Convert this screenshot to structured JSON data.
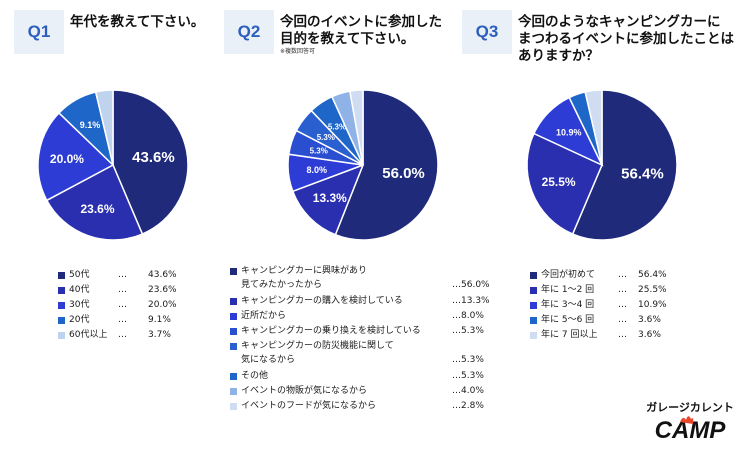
{
  "questions": [
    {
      "badge": "Q1",
      "title_lines": [
        "年代を教えて下さい。"
      ],
      "note": "",
      "chart_data": {
        "type": "pie",
        "title": "年代を教えて下さい。",
        "labels": [
          "50代",
          "40代",
          "30代",
          "20代",
          "60代以上"
        ],
        "values": [
          43.6,
          23.6,
          20.0,
          9.1,
          3.7
        ],
        "value_labels": [
          "43.6%",
          "23.6%",
          "20.0%",
          "9.1%",
          ""
        ],
        "legend_values": [
          "43.6%",
          "23.6%",
          "20.0%",
          "9.1%",
          "3.7%"
        ],
        "colors": [
          "#1f2a7a",
          "#2a2fb0",
          "#2e3cd6",
          "#1f66c9",
          "#bfd3ee"
        ]
      }
    },
    {
      "badge": "Q2",
      "title_lines": [
        "今回のイベントに参加した",
        "目的を教えて下さい。"
      ],
      "note": "※複数回答可",
      "chart_data": {
        "type": "pie",
        "title": "今回のイベントに参加した目的を教えて下さい。",
        "labels": [
          "キャンピングカーに興味があり見てみたかったから",
          "キャンピングカーの購入を検討している",
          "近所だから",
          "キャンピングカーの乗り換えを検討している",
          "キャンピングカーの防災機能に関して気になるから",
          "その他",
          "イベントの物販が気になるから",
          "イベントのフードが気になるから"
        ],
        "values": [
          56.0,
          13.3,
          8.0,
          5.3,
          5.3,
          5.3,
          4.0,
          2.8
        ],
        "value_labels": [
          "56.0%",
          "13.3%",
          "8.0%",
          "5.3%",
          "5.3%",
          "5.3%",
          "",
          ""
        ],
        "legend_values": [
          "…56.0%",
          "…13.3%",
          "…8.0%",
          "…5.3%",
          "…5.3%",
          "…5.3%",
          "…4.0%",
          "…2.8%"
        ],
        "colors": [
          "#1f2a7a",
          "#2a2fb0",
          "#2e3cd6",
          "#2a4ed0",
          "#2a5fd0",
          "#1f66c9",
          "#8fb3e6",
          "#cfdcf2"
        ]
      }
    },
    {
      "badge": "Q3",
      "title_lines": [
        "今回のようなキャンピングカーに",
        "まつわるイベントに参加したことは",
        "ありますか？"
      ],
      "note": "",
      "chart_data": {
        "type": "pie",
        "title": "今回のようなキャンピングカーにまつわるイベントに参加したことはありますか？",
        "labels": [
          "今回が初めて",
          "年に 1〜2 回",
          "年に 3〜4 回",
          "年に 5〜6 回",
          "年に 7 回以上"
        ],
        "values": [
          56.4,
          25.5,
          10.9,
          3.6,
          3.6
        ],
        "value_labels": [
          "56.4%",
          "25.5%",
          "10.9%",
          "",
          ""
        ],
        "legend_values": [
          "56.4%",
          "25.5%",
          "10.9%",
          "3.6%",
          "3.6%"
        ],
        "colors": [
          "#1f2a7a",
          "#2a2fb0",
          "#2e3cd6",
          "#1f66c9",
          "#cfdcf2"
        ]
      }
    }
  ],
  "legend_q1_dots": "…",
  "legend_q3_dots": "…",
  "logo": {
    "line1": "ガレージカレント",
    "line2": "CAMP"
  }
}
